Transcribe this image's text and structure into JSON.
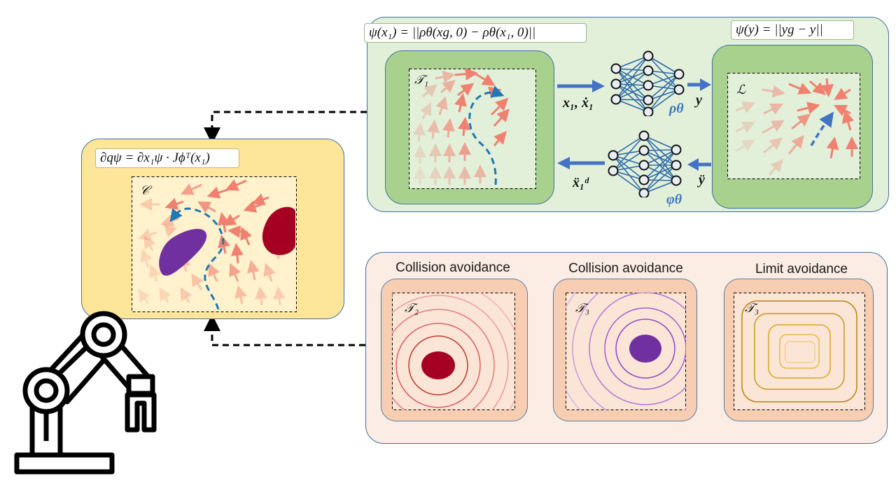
{
  "colors": {
    "green_outer": "#e2efd9",
    "green_inner": "#a9d18e",
    "config_panel": "#fde59a",
    "avoid_panel": "#fbece4",
    "avoid_inner": "#f8cbad",
    "arrow_red": "#f08070",
    "blue_dash": "#1f77b4",
    "obstacle_red": "#a50021",
    "obstacle_purple": "#7030a0",
    "limit_orange": "#d4a017",
    "nn_blue": "#2e6ba8"
  },
  "formulas": {
    "task_potential": "ψ(x₁) = ||ρθ(xg, 0) − ρθ(x₁, 0)||",
    "latent_potential": "ψ(y) = ||yg − y||",
    "config_gradient": "∂qψ = ∂x₁ψ · Jϕᵀ(x₁)"
  },
  "symbols": {
    "task_space_1": "𝒯₁",
    "latent_space": "ℒ",
    "config_space": "𝒞",
    "task_space_2": "𝒯₂",
    "task_space_3a": "𝒯₃",
    "task_space_3b": "𝒯₃"
  },
  "labels": {
    "encoder_input": "x₁, ẋ₁",
    "encoder_output": "y",
    "encoder_name": "ρθ",
    "decoder_input": "ÿ",
    "decoder_output": "ẍ₁ᵈ",
    "decoder_name": "φθ"
  },
  "avoidance_titles": {
    "left": "Collision avoidance",
    "middle": "Collision avoidance",
    "right": "Limit avoidance"
  },
  "icons": {
    "robot": "robot-arm-icon",
    "encoder": "neural-network-icon",
    "decoder": "neural-network-icon"
  }
}
